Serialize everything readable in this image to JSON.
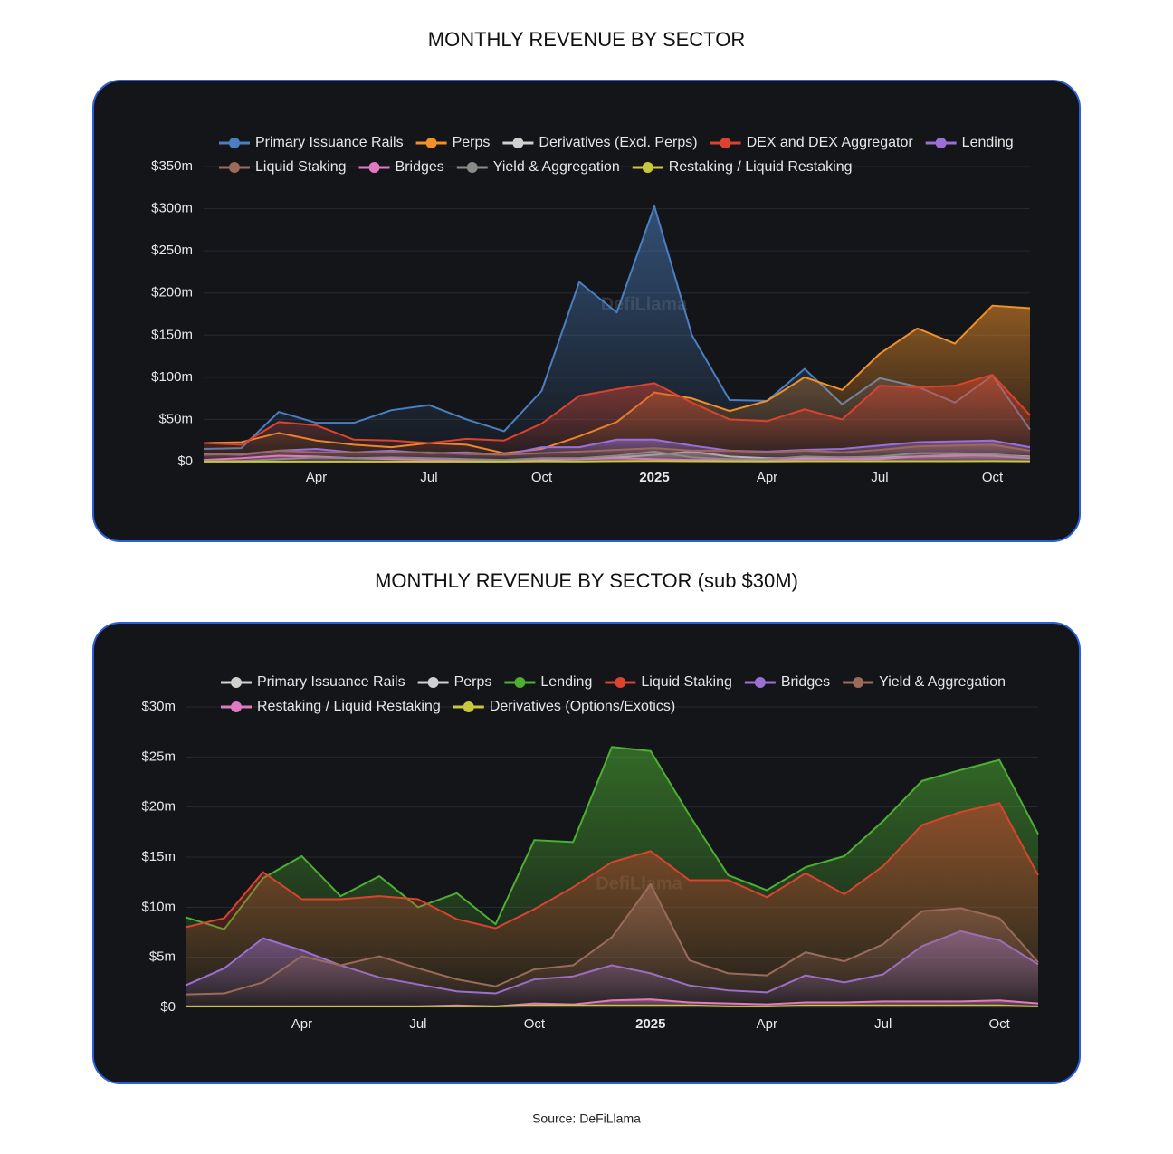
{
  "chart_data": [
    {
      "type": "area",
      "title": "MONTHLY REVENUE BY SECTOR",
      "watermark": "DefiLlama",
      "categories": [
        null,
        null,
        null,
        "Apr",
        null,
        null,
        "Jul",
        null,
        null,
        "Oct",
        null,
        null,
        "2025",
        null,
        null,
        "Apr",
        null,
        null,
        "Jul",
        null,
        null,
        "Oct",
        null
      ],
      "ylim": [
        0,
        350
      ],
      "yticks": [
        {
          "value": 0,
          "label": "$0"
        },
        {
          "value": 50,
          "label": "$50m"
        },
        {
          "value": 100,
          "label": "$100m"
        },
        {
          "value": 150,
          "label": "$150m"
        },
        {
          "value": 200,
          "label": "$200m"
        },
        {
          "value": 250,
          "label": "$250m"
        },
        {
          "value": 300,
          "label": "$300m"
        },
        {
          "value": 350,
          "label": "$350m"
        }
      ],
      "grid": true,
      "series": [
        {
          "name": "Primary Issuance Rails",
          "color": "#4a7fc1",
          "values": [
            15,
            16,
            59,
            46,
            46,
            61,
            67,
            50,
            36,
            84,
            213,
            177,
            303,
            150,
            73,
            72,
            110,
            68,
            99,
            89,
            70,
            102,
            38
          ]
        },
        {
          "name": "Perps",
          "color": "#f0902a",
          "values": [
            22,
            23,
            34,
            25,
            20,
            17,
            22,
            20,
            10,
            15,
            30,
            47,
            82,
            75,
            60,
            72,
            100,
            85,
            128,
            158,
            140,
            185,
            182
          ]
        },
        {
          "name": "Derivatives (Excl. Perps)",
          "color": "#d0d0d0",
          "values": [
            null,
            null,
            null,
            null,
            null,
            null,
            null,
            null,
            1,
            2,
            3,
            5,
            8,
            12,
            6,
            4,
            4,
            5,
            5,
            6,
            7,
            8,
            6
          ]
        },
        {
          "name": "DEX and DEX Aggregator",
          "color": "#d9432f",
          "values": [
            22,
            20,
            47,
            43,
            26,
            25,
            22,
            27,
            25,
            45,
            78,
            86,
            93,
            70,
            50,
            48,
            62,
            50,
            90,
            88,
            90,
            103,
            55
          ]
        },
        {
          "name": "Lending",
          "color": "#9b6fd6",
          "values": [
            9,
            8,
            13,
            15,
            11,
            13,
            10,
            11,
            8,
            17,
            17,
            26,
            26,
            19,
            13,
            12,
            14,
            15,
            19,
            23,
            24,
            25,
            17
          ]
        },
        {
          "name": "Liquid Staking",
          "color": "#9a6b5a",
          "values": [
            8,
            9,
            13,
            11,
            11,
            11,
            11,
            9,
            8,
            10,
            12,
            14,
            16,
            13,
            13,
            11,
            13,
            11,
            14,
            18,
            19,
            20,
            13
          ]
        },
        {
          "name": "Bridges",
          "color": "#e07ac0",
          "values": [
            2,
            4,
            7,
            6,
            4,
            3,
            2,
            2,
            1,
            3,
            3,
            4,
            3,
            2,
            2,
            2,
            3,
            3,
            3,
            6,
            8,
            7,
            4
          ]
        },
        {
          "name": "Yield & Aggregation",
          "color": "#8a8a8a",
          "values": [
            1,
            1,
            3,
            5,
            4,
            5,
            4,
            3,
            2,
            4,
            4,
            7,
            12,
            5,
            3,
            3,
            6,
            5,
            6,
            10,
            10,
            9,
            5
          ]
        },
        {
          "name": "Restaking / Liquid Restaking",
          "color": "#c8c83a",
          "values": [
            0.1,
            0.1,
            0.1,
            0.1,
            0.1,
            0.1,
            0.1,
            0.2,
            0.1,
            0.4,
            0.3,
            0.7,
            0.8,
            0.5,
            0.4,
            0.3,
            0.5,
            0.5,
            0.6,
            0.6,
            0.6,
            0.7,
            0.4
          ]
        }
      ]
    },
    {
      "type": "area",
      "title": "MONTHLY REVENUE BY SECTOR (sub $30M)",
      "watermark": "DefiLlama",
      "categories": [
        null,
        null,
        null,
        "Apr",
        null,
        null,
        "Jul",
        null,
        null,
        "Oct",
        null,
        null,
        "2025",
        null,
        null,
        "Apr",
        null,
        null,
        "Jul",
        null,
        null,
        "Oct",
        null
      ],
      "ylim": [
        0,
        30
      ],
      "yticks": [
        {
          "value": 0,
          "label": "$0"
        },
        {
          "value": 5,
          "label": "$5m"
        },
        {
          "value": 10,
          "label": "$10m"
        },
        {
          "value": 15,
          "label": "$15m"
        },
        {
          "value": 20,
          "label": "$20m"
        },
        {
          "value": 25,
          "label": "$25m"
        },
        {
          "value": 30,
          "label": "$30m"
        }
      ],
      "grid": true,
      "series": [
        {
          "name": "Primary Issuance Rails",
          "color": "#d0d0d0"
        },
        {
          "name": "Perps",
          "color": "#d0d0d0"
        },
        {
          "name": "Lending",
          "color": "#4caf32",
          "values": [
            9.0,
            7.8,
            12.9,
            15.1,
            11.1,
            13.1,
            10.0,
            11.4,
            8.3,
            16.7,
            16.5,
            26.0,
            25.6,
            19.2,
            13.2,
            11.7,
            14.0,
            15.1,
            18.6,
            22.6,
            23.7,
            24.7,
            17.3
          ]
        },
        {
          "name": "Liquid Staking",
          "color": "#d9432f",
          "values": [
            8.0,
            8.9,
            13.5,
            10.8,
            10.8,
            11.1,
            10.8,
            8.8,
            7.9,
            9.8,
            12.0,
            14.5,
            15.6,
            12.7,
            12.7,
            11.0,
            13.4,
            11.3,
            14.1,
            18.2,
            19.5,
            20.4,
            13.2
          ]
        },
        {
          "name": "Bridges",
          "color": "#9b6fd6",
          "values": [
            2.2,
            3.9,
            6.9,
            5.7,
            4.2,
            3.0,
            2.3,
            1.6,
            1.4,
            2.8,
            3.1,
            4.2,
            3.4,
            2.2,
            1.7,
            1.5,
            3.2,
            2.5,
            3.3,
            6.1,
            7.6,
            6.7,
            4.3
          ]
        },
        {
          "name": "Yield & Aggregation",
          "color": "#9a6b5a",
          "values": [
            1.3,
            1.4,
            2.5,
            5.1,
            4.2,
            5.1,
            3.9,
            2.8,
            2.1,
            3.8,
            4.2,
            7.0,
            12.3,
            4.7,
            3.4,
            3.2,
            5.5,
            4.6,
            6.3,
            9.6,
            9.9,
            8.9,
            4.5
          ]
        },
        {
          "name": "Restaking / Liquid Restaking",
          "color": "#e07ac0",
          "values": [
            0.1,
            0.1,
            0.1,
            0.1,
            0.1,
            0.1,
            0.1,
            0.2,
            0.1,
            0.4,
            0.3,
            0.7,
            0.8,
            0.5,
            0.4,
            0.3,
            0.5,
            0.5,
            0.6,
            0.6,
            0.6,
            0.7,
            0.4
          ]
        },
        {
          "name": "Derivatives (Options/Exotics)",
          "color": "#c8c83a",
          "values": [
            0.1,
            0.1,
            0.1,
            0.1,
            0.1,
            0.1,
            0.1,
            0.1,
            0.1,
            0.2,
            0.2,
            0.2,
            0.2,
            0.2,
            0.1,
            0.1,
            0.2,
            0.2,
            0.2,
            0.2,
            0.2,
            0.2,
            0.1
          ]
        }
      ]
    }
  ],
  "source": "Source: DeFiLlama"
}
